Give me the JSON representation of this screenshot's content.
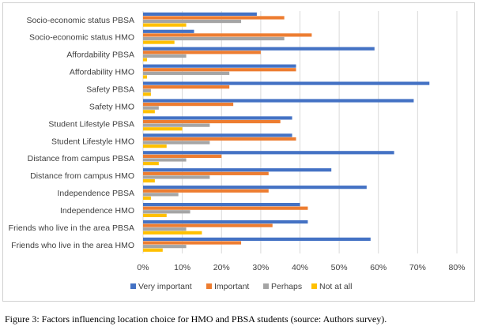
{
  "caption": "Figure 3: Factors influencing location choice for HMO and PBSA students (source: Authors survey).",
  "chart_data": {
    "type": "bar",
    "orientation": "horizontal",
    "categories": [
      "Socio-economic status PBSA",
      "Socio-economic status HMO",
      "Affordability PBSA",
      "Affordability HMO",
      "Safety PBSA",
      "Safety HMO",
      "Student Lifestyle PBSA",
      "Student Lifestyle HMO",
      "Distance from campus PBSA",
      "Distance from campus HMO",
      "Independence PBSA",
      "Independence HMO",
      "Friends who live in the area PBSA",
      "Friends who live in the area HMO"
    ],
    "series": [
      {
        "name": "Very important",
        "color": "#4472C4",
        "values": [
          29,
          13,
          59,
          39,
          73,
          69,
          38,
          38,
          64,
          48,
          57,
          40,
          42,
          58
        ]
      },
      {
        "name": "Important",
        "color": "#ED7D31",
        "values": [
          36,
          43,
          30,
          39,
          22,
          23,
          35,
          39,
          20,
          32,
          32,
          42,
          33,
          25
        ]
      },
      {
        "name": "Perhaps",
        "color": "#A5A5A5",
        "values": [
          25,
          36,
          11,
          22,
          2,
          4,
          17,
          17,
          11,
          17,
          9,
          12,
          11,
          11
        ]
      },
      {
        "name": "Not at all",
        "color": "#FFC000",
        "values": [
          11,
          8,
          1,
          1,
          2,
          3,
          10,
          6,
          4,
          3,
          2,
          6,
          15,
          5
        ]
      }
    ],
    "xlim": [
      0,
      80
    ],
    "x_ticks": [
      "0%",
      "10%",
      "20%",
      "30%",
      "40%",
      "50%",
      "60%",
      "70%",
      "80%"
    ],
    "grid": "vertical",
    "legend_position": "bottom"
  }
}
